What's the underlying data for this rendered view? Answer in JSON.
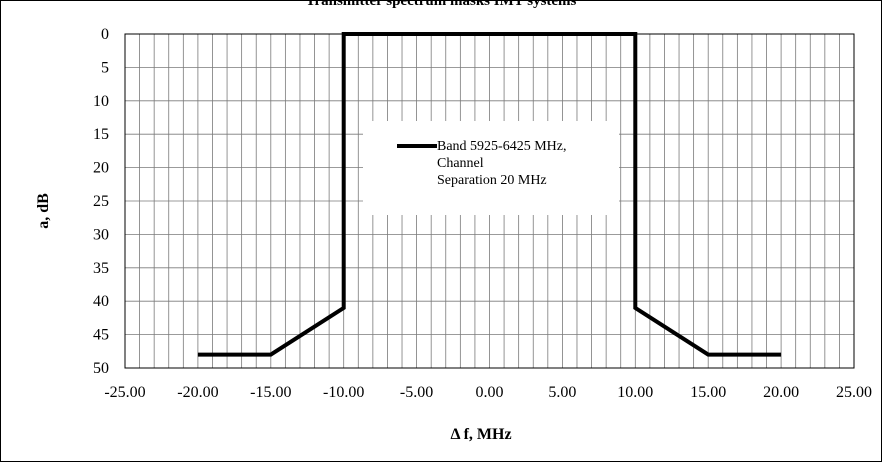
{
  "chart_data": {
    "type": "line",
    "title": "Transmitter spectrum masks IMT systems",
    "xlabel": "Δ f, MHz",
    "ylabel": "a, dB",
    "xlim": [
      -25,
      25
    ],
    "ylim": [
      0,
      50
    ],
    "y_inverted": true,
    "grid": true,
    "x_ticks": [
      "-25.00",
      "-20.00",
      "-15.00",
      "-10.00",
      "-5.00",
      "0.00",
      "5.00",
      "10.00",
      "15.00",
      "20.00",
      "25.00"
    ],
    "y_ticks": [
      "0",
      "5",
      "10",
      "15",
      "20",
      "25",
      "30",
      "35",
      "40",
      "45",
      "50"
    ],
    "legend_position": "center",
    "series": [
      {
        "name": "Band 5925-6425 MHz, Channel\nSeparation 20 MHz",
        "color": "#000000",
        "x": [
          -20,
          -15,
          -10,
          -10,
          10,
          10,
          15,
          20
        ],
        "y": [
          48,
          48,
          41,
          0,
          0,
          41,
          48,
          48
        ]
      }
    ]
  }
}
